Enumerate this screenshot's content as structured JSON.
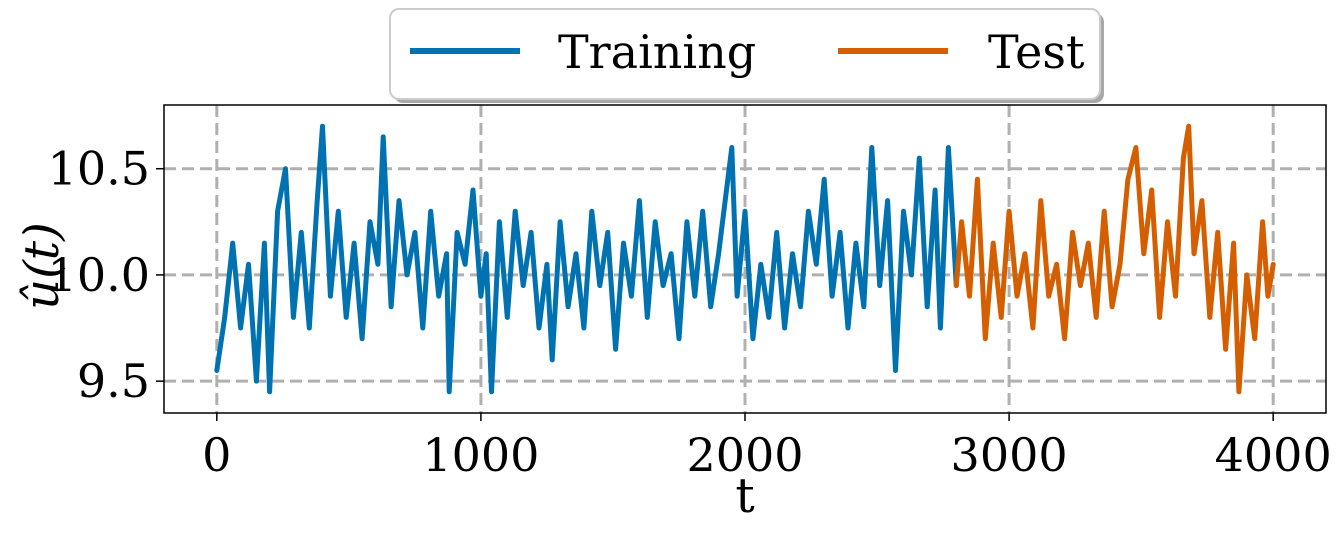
{
  "chart_data": {
    "type": "line",
    "title": "",
    "xlabel": "t",
    "ylabel": "û(t)",
    "xlim": [
      -200,
      4200
    ],
    "ylim": [
      9.35,
      10.8
    ],
    "xticks": [
      0,
      1000,
      2000,
      3000,
      4000
    ],
    "xtick_labels": [
      "0",
      "1000",
      "2000",
      "3000",
      "4000"
    ],
    "yticks": [
      9.5,
      10.0,
      10.5
    ],
    "ytick_labels": [
      "9.5",
      "10.0",
      "10.5"
    ],
    "grid": true,
    "legend_position": "top-center",
    "series": [
      {
        "name": "Training",
        "color": "#0072b2",
        "x_range": [
          0,
          2800
        ],
        "points": [
          [
            0,
            9.55
          ],
          [
            30,
            9.8
          ],
          [
            60,
            10.15
          ],
          [
            90,
            9.75
          ],
          [
            120,
            10.05
          ],
          [
            150,
            9.5
          ],
          [
            180,
            10.15
          ],
          [
            200,
            9.45
          ],
          [
            230,
            10.3
          ],
          [
            260,
            10.5
          ],
          [
            290,
            9.8
          ],
          [
            320,
            10.2
          ],
          [
            350,
            9.75
          ],
          [
            380,
            10.35
          ],
          [
            400,
            10.7
          ],
          [
            430,
            9.9
          ],
          [
            460,
            10.3
          ],
          [
            490,
            9.8
          ],
          [
            520,
            10.15
          ],
          [
            550,
            9.7
          ],
          [
            580,
            10.25
          ],
          [
            610,
            10.05
          ],
          [
            630,
            10.65
          ],
          [
            660,
            9.85
          ],
          [
            690,
            10.35
          ],
          [
            720,
            10.0
          ],
          [
            750,
            10.2
          ],
          [
            780,
            9.75
          ],
          [
            810,
            10.3
          ],
          [
            840,
            9.9
          ],
          [
            870,
            10.1
          ],
          [
            880,
            9.45
          ],
          [
            910,
            10.2
          ],
          [
            940,
            10.05
          ],
          [
            970,
            10.4
          ],
          [
            1000,
            9.9
          ],
          [
            1020,
            10.1
          ],
          [
            1040,
            9.45
          ],
          [
            1070,
            10.25
          ],
          [
            1100,
            9.8
          ],
          [
            1130,
            10.3
          ],
          [
            1160,
            9.95
          ],
          [
            1190,
            10.2
          ],
          [
            1220,
            9.75
          ],
          [
            1250,
            10.05
          ],
          [
            1270,
            9.6
          ],
          [
            1300,
            10.25
          ],
          [
            1330,
            9.85
          ],
          [
            1360,
            10.1
          ],
          [
            1390,
            9.75
          ],
          [
            1420,
            10.3
          ],
          [
            1450,
            9.95
          ],
          [
            1480,
            10.2
          ],
          [
            1510,
            9.65
          ],
          [
            1540,
            10.15
          ],
          [
            1570,
            9.9
          ],
          [
            1600,
            10.35
          ],
          [
            1630,
            9.8
          ],
          [
            1660,
            10.25
          ],
          [
            1690,
            9.95
          ],
          [
            1720,
            10.1
          ],
          [
            1750,
            9.7
          ],
          [
            1780,
            10.25
          ],
          [
            1810,
            9.9
          ],
          [
            1840,
            10.3
          ],
          [
            1870,
            9.85
          ],
          [
            1900,
            10.1
          ],
          [
            1930,
            10.4
          ],
          [
            1950,
            10.6
          ],
          [
            1970,
            9.9
          ],
          [
            2000,
            10.3
          ],
          [
            2030,
            9.7
          ],
          [
            2060,
            10.05
          ],
          [
            2090,
            9.8
          ],
          [
            2120,
            10.2
          ],
          [
            2150,
            9.75
          ],
          [
            2180,
            10.1
          ],
          [
            2210,
            9.85
          ],
          [
            2240,
            10.3
          ],
          [
            2270,
            10.05
          ],
          [
            2300,
            10.45
          ],
          [
            2330,
            9.9
          ],
          [
            2360,
            10.2
          ],
          [
            2390,
            9.75
          ],
          [
            2420,
            10.15
          ],
          [
            2450,
            9.85
          ],
          [
            2480,
            10.6
          ],
          [
            2510,
            9.95
          ],
          [
            2540,
            10.35
          ],
          [
            2570,
            9.55
          ],
          [
            2600,
            10.3
          ],
          [
            2630,
            10.0
          ],
          [
            2660,
            10.55
          ],
          [
            2690,
            9.85
          ],
          [
            2720,
            10.4
          ],
          [
            2740,
            9.75
          ],
          [
            2770,
            10.6
          ],
          [
            2800,
            9.95
          ]
        ]
      },
      {
        "name": "Test",
        "color": "#d55e00",
        "x_range": [
          2800,
          4000
        ],
        "points": [
          [
            2800,
            9.95
          ],
          [
            2820,
            10.25
          ],
          [
            2850,
            9.9
          ],
          [
            2880,
            10.45
          ],
          [
            2910,
            9.7
          ],
          [
            2940,
            10.15
          ],
          [
            2970,
            9.8
          ],
          [
            3000,
            10.3
          ],
          [
            3030,
            9.9
          ],
          [
            3060,
            10.1
          ],
          [
            3090,
            9.75
          ],
          [
            3120,
            10.35
          ],
          [
            3150,
            9.9
          ],
          [
            3180,
            10.05
          ],
          [
            3210,
            9.7
          ],
          [
            3240,
            10.2
          ],
          [
            3270,
            9.95
          ],
          [
            3300,
            10.15
          ],
          [
            3330,
            9.8
          ],
          [
            3360,
            10.3
          ],
          [
            3390,
            9.85
          ],
          [
            3420,
            10.05
          ],
          [
            3450,
            10.45
          ],
          [
            3480,
            10.6
          ],
          [
            3510,
            10.1
          ],
          [
            3540,
            10.4
          ],
          [
            3570,
            9.8
          ],
          [
            3600,
            10.25
          ],
          [
            3630,
            9.9
          ],
          [
            3660,
            10.55
          ],
          [
            3680,
            10.7
          ],
          [
            3700,
            10.1
          ],
          [
            3730,
            10.35
          ],
          [
            3760,
            9.8
          ],
          [
            3790,
            10.2
          ],
          [
            3820,
            9.65
          ],
          [
            3850,
            10.15
          ],
          [
            3870,
            9.45
          ],
          [
            3900,
            10.0
          ],
          [
            3930,
            9.7
          ],
          [
            3960,
            10.25
          ],
          [
            3980,
            9.9
          ],
          [
            4000,
            10.05
          ]
        ]
      }
    ]
  }
}
